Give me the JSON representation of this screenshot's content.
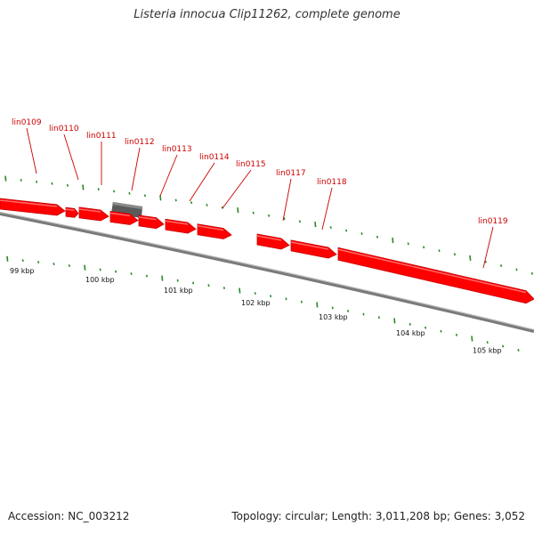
{
  "title": "Listeria innocua Clip11262, complete genome",
  "footer": {
    "accession": "Accession: NC_003212",
    "summary": "Topology: circular; Length: 3,011,208 bp; Genes: 3,052"
  },
  "colors": {
    "gene": "#ff0000",
    "gene_dark": "#c80000",
    "other_feature": "#555555",
    "backbone": "#888888",
    "tick": "#2a8a2a",
    "label": "#cc0000"
  },
  "genes": [
    {
      "name": "lin0109"
    },
    {
      "name": "lin0110"
    },
    {
      "name": "lin0111"
    },
    {
      "name": "lin0112"
    },
    {
      "name": "lin0113"
    },
    {
      "name": "lin0114"
    },
    {
      "name": "lin0115"
    },
    {
      "name": "lin0117"
    },
    {
      "name": "lin0118"
    },
    {
      "name": "lin0119"
    }
  ],
  "scale_labels": [
    "99 kbp",
    "100 kbp",
    "101 kbp",
    "102 kbp",
    "103 kbp",
    "104 kbp",
    "105 kbp"
  ]
}
